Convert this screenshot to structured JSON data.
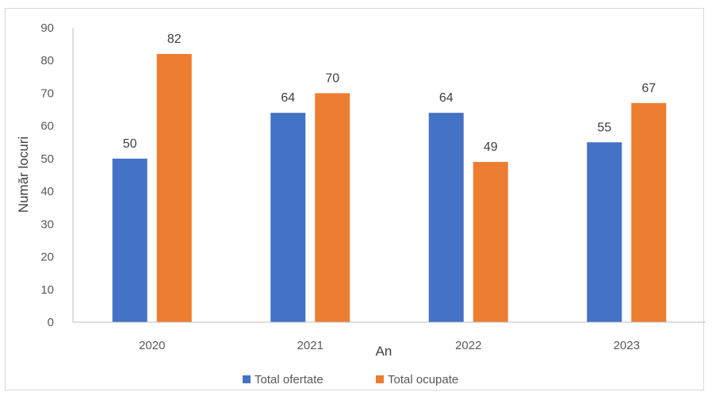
{
  "chart_data": {
    "type": "bar",
    "categories": [
      "2020",
      "2021",
      "2022",
      "2023"
    ],
    "series": [
      {
        "name": "Total ofertate",
        "values": [
          50,
          64,
          64,
          55
        ],
        "color": "#4472C4"
      },
      {
        "name": "Total ocupate",
        "values": [
          82,
          70,
          49,
          67
        ],
        "color": "#ED7D31"
      }
    ],
    "xlabel": "An",
    "ylabel": "Număr locuri",
    "ylim": [
      0,
      90
    ],
    "yticks": [
      0,
      10,
      20,
      30,
      40,
      50,
      60,
      70,
      80,
      90
    ],
    "grid": false,
    "legend_position": "bottom",
    "data_labels": true
  }
}
